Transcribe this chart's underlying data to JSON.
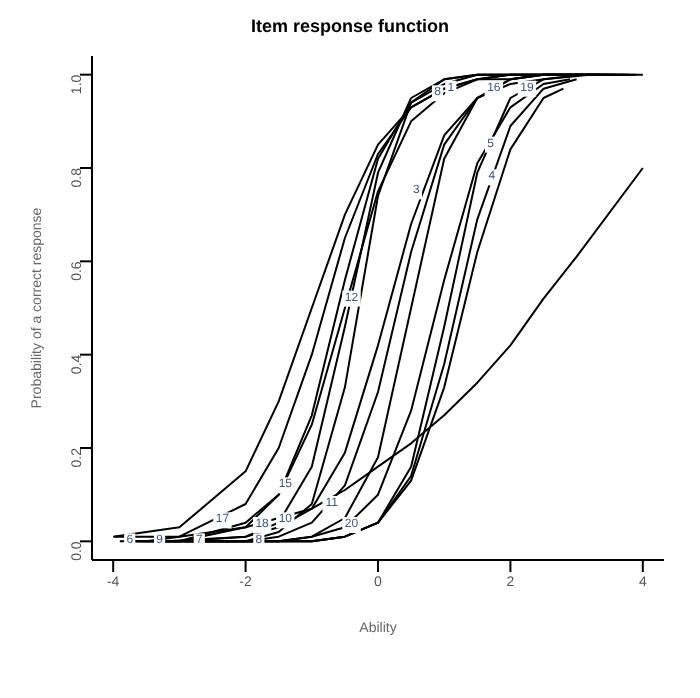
{
  "chart_data": {
    "type": "line",
    "title": "Item response function",
    "xlabel": "Ability",
    "ylabel": "Probability of a correct response",
    "xlim": [
      -4.32,
      4.32
    ],
    "xticks": [
      -4,
      -2,
      0,
      2,
      4
    ],
    "ylim": [
      -0.04,
      1.04
    ],
    "yticks": [
      {
        "value": 0,
        "label": "0.0"
      },
      0.2,
      0.4,
      0.6,
      0.8,
      {
        "value": 1,
        "label": "1.0"
      }
    ],
    "grid": false,
    "marker": "none",
    "line_style": "solid",
    "series": [
      {
        "color": "#000000",
        "x": [
          -4,
          -3,
          -2,
          -1.5,
          -1,
          -0.5,
          0,
          0.5,
          1,
          1.5,
          2,
          2.5,
          3,
          4
        ],
        "values": [
          0.01,
          0.03,
          0.15,
          0.3,
          0.5,
          0.7,
          0.85,
          0.93,
          0.97,
          0.99,
          0.99,
          1.0,
          1.0,
          1.0
        ]
      },
      {
        "color": "#000000",
        "x": [
          -3.9,
          -3,
          -2,
          -1.5,
          -1,
          -0.5,
          0,
          0.5,
          1,
          1.5,
          2,
          2.5,
          3,
          3.9
        ],
        "values": [
          0.0,
          0.0,
          0.03,
          0.1,
          0.27,
          0.56,
          0.82,
          0.94,
          0.98,
          1.0,
          1.0,
          1.0,
          1.0,
          1.0
        ]
      },
      {
        "color": "#000000",
        "x": [
          -3.8,
          -3,
          -2,
          -1.5,
          -1,
          -0.5,
          0,
          0.5,
          1,
          1.5,
          2,
          2.5,
          3,
          3.8
        ],
        "values": [
          0.0,
          0.0,
          0.01,
          0.04,
          0.16,
          0.46,
          0.79,
          0.95,
          0.99,
          1.0,
          1.0,
          1.0,
          1.0,
          1.0
        ]
      },
      {
        "color": "#000000",
        "x": [
          -3.7,
          -3,
          -2,
          -1.5,
          -1,
          -0.5,
          0,
          0.5,
          1,
          1.5,
          2,
          2.5,
          3,
          3.7
        ],
        "values": [
          0.0,
          0.0,
          0.0,
          0.02,
          0.08,
          0.33,
          0.74,
          0.94,
          0.99,
          1.0,
          1.0,
          1.0,
          1.0,
          1.0
        ]
      },
      {
        "color": "#000000",
        "x": [
          -3.6,
          -3,
          -2,
          -1.5,
          -1,
          -0.5,
          0,
          0.5,
          1,
          1.5,
          2,
          2.5,
          3,
          3.6
        ],
        "values": [
          0.0,
          0.0,
          0.04,
          0.1,
          0.25,
          0.5,
          0.75,
          0.9,
          0.96,
          0.99,
          1.0,
          1.0,
          1.0,
          1.0
        ]
      },
      {
        "color": "#000000",
        "x": [
          -3.5,
          -3,
          -2,
          -1.5,
          -1,
          -0.5,
          0,
          0.5,
          1,
          1.5,
          2,
          2.5,
          3,
          3.5
        ],
        "values": [
          0.0,
          0.01,
          0.08,
          0.2,
          0.4,
          0.65,
          0.83,
          0.93,
          0.97,
          0.99,
          1.0,
          1.0,
          1.0,
          1.0
        ]
      },
      {
        "color": "#000000",
        "x": [
          -3.4,
          -3,
          -2,
          -1.5,
          -1,
          -0.5,
          0,
          0.5,
          1,
          1.5,
          2,
          2.5,
          3,
          3.4
        ],
        "values": [
          0.0,
          0.0,
          0.0,
          0.01,
          0.04,
          0.12,
          0.32,
          0.62,
          0.85,
          0.95,
          0.99,
          1.0,
          1.0,
          1.0
        ]
      },
      {
        "color": "#000000",
        "x": [
          -3.3,
          -3,
          -2,
          -1.5,
          -1,
          -0.5,
          0,
          0.5,
          1,
          1.5,
          2,
          2.5,
          3,
          3.3
        ],
        "values": [
          0.0,
          0.0,
          0.0,
          0.0,
          0.01,
          0.05,
          0.18,
          0.5,
          0.82,
          0.95,
          0.99,
          1.0,
          1.0,
          1.0
        ]
      },
      {
        "color": "#000000",
        "x": [
          -3.2,
          -2,
          -1.5,
          -1,
          -0.5,
          0,
          0.5,
          1,
          1.5,
          2,
          2.5,
          3.2
        ],
        "values": [
          0.0,
          0.01,
          0.03,
          0.07,
          0.19,
          0.42,
          0.68,
          0.87,
          0.95,
          0.98,
          0.99,
          1.0
        ]
      },
      {
        "color": "#000000",
        "x": [
          -3.1,
          -2,
          -1.5,
          -1,
          -0.5,
          0,
          0.5,
          1,
          1.5,
          2,
          2.5,
          3.1
        ],
        "values": [
          0.0,
          0.0,
          0.0,
          0.0,
          0.01,
          0.04,
          0.16,
          0.46,
          0.79,
          0.95,
          0.99,
          1.0
        ]
      },
      {
        "color": "#000000",
        "x": [
          -3.0,
          -2,
          -1.5,
          -1,
          -0.5,
          0,
          0.5,
          1,
          1.5,
          2,
          2.5,
          3.0
        ],
        "values": [
          0.0,
          0.0,
          0.0,
          0.0,
          0.01,
          0.04,
          0.14,
          0.38,
          0.69,
          0.89,
          0.97,
          0.99
        ]
      },
      {
        "color": "#000000",
        "x": [
          -2.9,
          -2,
          -1.5,
          -1,
          -0.5,
          0,
          0.5,
          1,
          1.5,
          2,
          2.5,
          2.9
        ],
        "values": [
          0.0,
          0.0,
          0.0,
          0.01,
          0.03,
          0.1,
          0.28,
          0.56,
          0.81,
          0.93,
          0.98,
          0.99
        ]
      },
      {
        "color": "#000000",
        "x": [
          -2.8,
          -2,
          -1.5,
          -1,
          -0.5,
          0,
          0.5,
          1,
          1.5,
          2,
          2.5,
          2.8
        ],
        "values": [
          0.0,
          0.0,
          0.0,
          0.0,
          0.01,
          0.04,
          0.13,
          0.33,
          0.62,
          0.84,
          0.95,
          0.97
        ]
      },
      {
        "color": "#000000",
        "x": [
          -3.98,
          -3,
          -2,
          -1.5,
          -1,
          -0.5,
          0,
          0.5,
          1,
          1.5,
          2,
          2.5,
          3,
          4
        ],
        "values": [
          0.01,
          0.01,
          0.03,
          0.05,
          0.07,
          0.11,
          0.16,
          0.21,
          0.27,
          0.34,
          0.42,
          0.52,
          0.61,
          0.8
        ]
      }
    ],
    "annotations": [
      {
        "text": "6",
        "x": -3.75,
        "y": 0.0
      },
      {
        "text": "9",
        "x": -3.3,
        "y": 0.0
      },
      {
        "text": "7",
        "x": -2.7,
        "y": 0.0
      },
      {
        "text": "17",
        "x": -2.35,
        "y": 0.045
      },
      {
        "text": "18",
        "x": -1.75,
        "y": 0.035
      },
      {
        "text": "8",
        "x": -1.8,
        "y": 0.0
      },
      {
        "text": "15",
        "x": -1.4,
        "y": 0.12
      },
      {
        "text": "10",
        "x": -1.4,
        "y": 0.045
      },
      {
        "text": "11",
        "x": -0.7,
        "y": 0.08
      },
      {
        "text": "20",
        "x": -0.4,
        "y": 0.035
      },
      {
        "text": "12",
        "x": -0.4,
        "y": 0.52
      },
      {
        "text": "3",
        "x": 0.58,
        "y": 0.75
      },
      {
        "text": "8",
        "x": 0.9,
        "y": 0.96
      },
      {
        "text": "1",
        "x": 1.1,
        "y": 0.97
      },
      {
        "text": "16",
        "x": 1.75,
        "y": 0.97
      },
      {
        "text": "19",
        "x": 2.25,
        "y": 0.97
      },
      {
        "text": "5",
        "x": 1.7,
        "y": 0.85
      },
      {
        "text": "4",
        "x": 1.72,
        "y": 0.78
      }
    ]
  }
}
